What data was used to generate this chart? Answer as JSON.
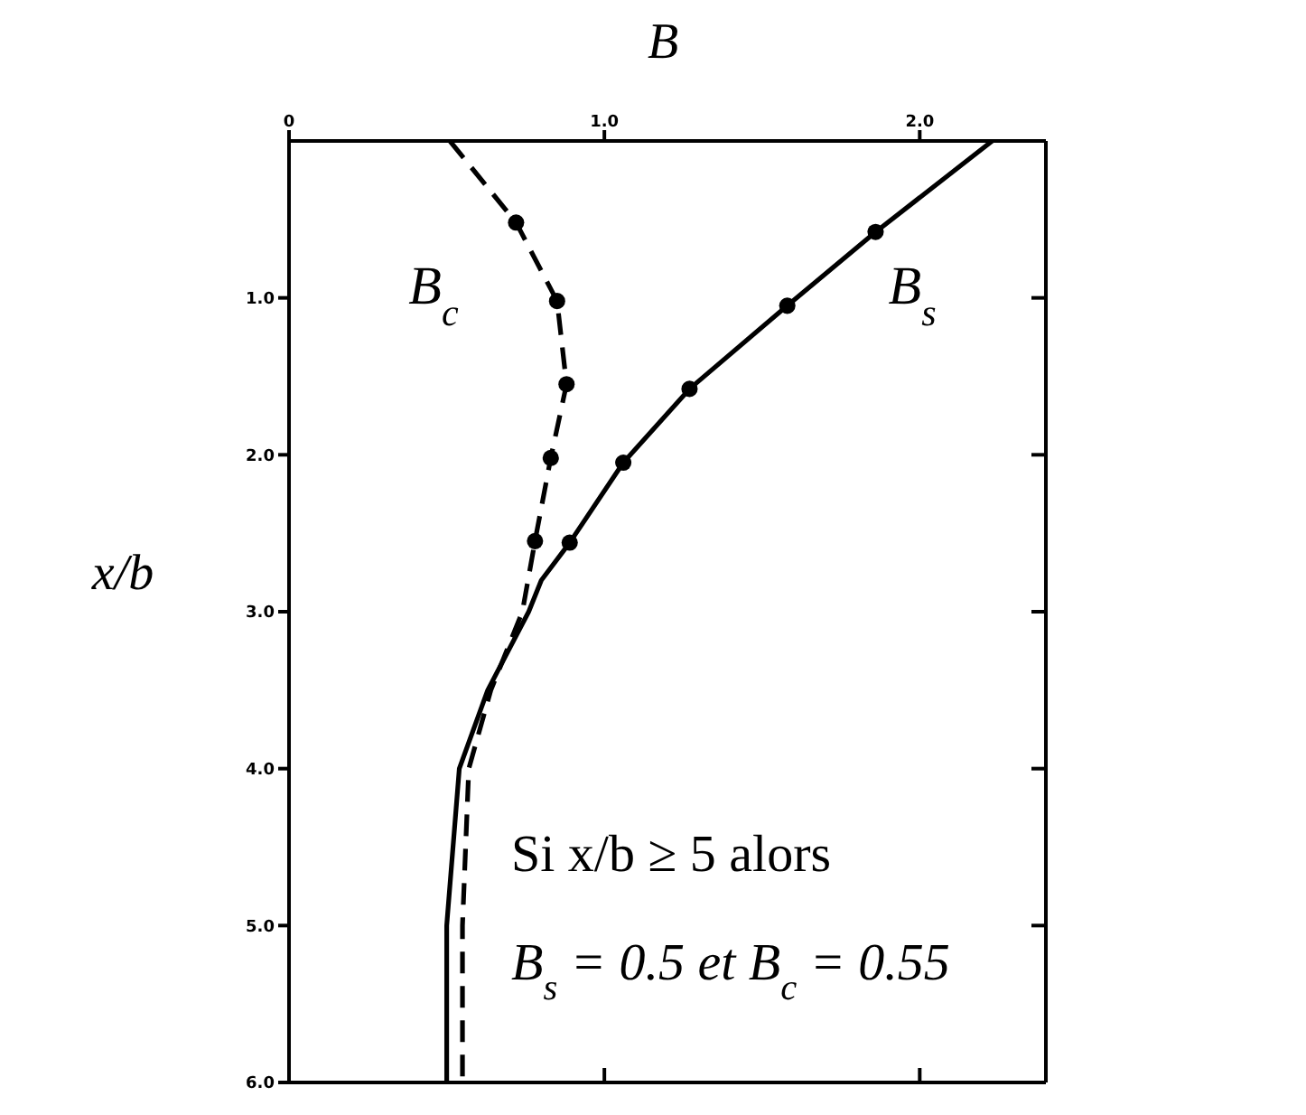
{
  "chart_data": {
    "type": "line",
    "xlabel": "B",
    "ylabel": "x/b",
    "xlim": [
      0,
      2.4
    ],
    "xticks": [
      0,
      {
        "value": 1,
        "label": "1.0"
      },
      {
        "value": 2,
        "label": "2.0"
      }
    ],
    "ylim": [
      6,
      0
    ],
    "yticks": [
      {
        "value": 1,
        "label": "1.0"
      },
      {
        "value": 2,
        "label": "2.0"
      },
      {
        "value": 3,
        "label": "3.0"
      },
      {
        "value": 4,
        "label": "4.0"
      },
      {
        "value": 5,
        "label": "5.0"
      },
      {
        "value": 6,
        "label": "6.0"
      }
    ],
    "grid": false,
    "series": [
      {
        "name": "B$_{s}$",
        "line_style": "solid",
        "marker": "none",
        "color": "#000000",
        "x": [
          2.23,
          1.86,
          1.58,
          1.27,
          1.06,
          0.89,
          0.8,
          0.76,
          0.63,
          0.54,
          0.52,
          0.5,
          0.5
        ],
        "values": [
          0,
          0.58,
          1.05,
          1.58,
          2.05,
          2.56,
          2.8,
          3.0,
          3.5,
          4.0,
          4.5,
          5.0,
          6.0
        ]
      },
      {
        "type": "scatter",
        "marker": "circle",
        "color": "#000000",
        "x": [
          1.86,
          1.58,
          1.27,
          1.06,
          0.89
        ],
        "values": [
          0.58,
          1.05,
          1.58,
          2.05,
          2.56
        ]
      },
      {
        "name": "B$_{c}$",
        "line_style": "dashed",
        "marker": "none",
        "color": "#000000",
        "x": [
          0.51,
          0.72,
          0.85,
          0.88,
          0.83,
          0.78,
          0.74,
          0.64,
          0.57,
          0.56,
          0.55,
          0.55
        ],
        "values": [
          0,
          0.52,
          1.02,
          1.55,
          2.02,
          2.55,
          3.0,
          3.5,
          4.0,
          4.5,
          5.0,
          6.0
        ]
      },
      {
        "type": "scatter",
        "marker": "circle",
        "color": "#000000",
        "x": [
          0.72,
          0.85,
          0.88,
          0.83,
          0.78
        ],
        "values": [
          0.52,
          1.02,
          1.55,
          2.02,
          2.55
        ]
      }
    ],
    "annotations": [
      "Si x/b ≥ 5 alors",
      "B$_{s}$ = 0.5 et B$_{c}$ = 0.55"
    ]
  }
}
